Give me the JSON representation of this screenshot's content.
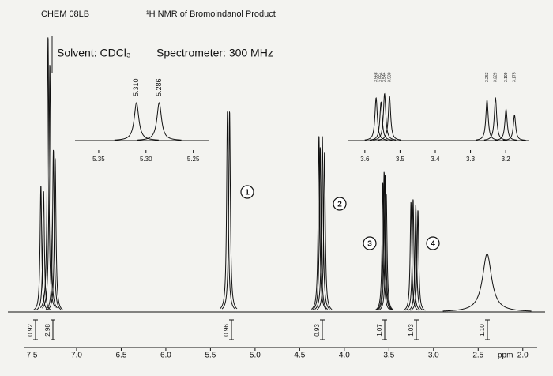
{
  "header": {
    "course": "CHEM 08LB",
    "title": "¹H NMR of Bromoindanol Product"
  },
  "chart_data": [
    {
      "type": "nmr",
      "subtitle": "Solvent: CDCl₃",
      "annotation": "Spectrometer: 300 MHz",
      "xlabel": "ppm",
      "xlim": [
        7.77,
        1.75
      ],
      "ylim": [
        0,
        100
      ],
      "xticks": [
        7.5,
        {
          "value": 7,
          "label": "7.0"
        },
        6.5,
        {
          "value": 6,
          "label": "6.0"
        },
        5.5,
        {
          "value": 5,
          "label": "5.0"
        },
        4.5,
        {
          "value": 4,
          "label": "4.0"
        },
        3.5,
        {
          "value": 3,
          "label": "3.0"
        },
        2.5,
        {
          "value": 2,
          "label": "2.0"
        }
      ],
      "x": [
        7.4,
        7.37,
        7.32,
        7.3,
        7.26,
        7.24,
        5.31,
        5.286,
        4.284,
        4.27,
        4.246,
        4.222,
        3.568,
        3.554,
        3.544,
        3.53,
        3.253,
        3.229,
        3.199,
        3.175,
        2.4
      ],
      "values": [
        46,
        44,
        100,
        90,
        59,
        56,
        73,
        73,
        64,
        60,
        64,
        58,
        47,
        51,
        50,
        43,
        40,
        41,
        39,
        37,
        21
      ],
      "integrals": {
        "values": [
          0.92,
          2.98,
          0.96,
          0.93,
          1.07,
          1.03,
          1.1
        ],
        "value_labels": [
          "0.92",
          "2.98",
          "0.96",
          "0.93",
          "1.07",
          "1.03",
          "1.10"
        ]
      },
      "peak_labels": [
        "1",
        "2",
        "3",
        "4"
      ]
    },
    {
      "type": "nmr",
      "xlim": [
        5.375,
        5.233
      ],
      "ylim": [
        0,
        100
      ],
      "xticks": [
        5.35,
        {
          "value": 5.3,
          "label": "5.30"
        },
        5.25
      ],
      "x": [
        5.31,
        5.286
      ],
      "x_labels": [
        "5.310",
        "5.286"
      ],
      "values": [
        100,
        100
      ]
    },
    {
      "type": "nmr",
      "xlim": [
        3.649,
        3.133
      ],
      "ylim": [
        0,
        100
      ],
      "xticks": [
        3.6,
        3.5,
        3.4,
        3.3,
        3.2
      ],
      "x": [
        3.568,
        3.554,
        3.544,
        3.53,
        3.253,
        3.229,
        3.199,
        3.175
      ],
      "x_labels": [
        "3.568",
        "3.554",
        "3.544",
        "3.530",
        "3.253",
        "3.229",
        "3.199",
        "3.175"
      ],
      "values": [
        82,
        74,
        90,
        85,
        78,
        82,
        60,
        49
      ]
    }
  ]
}
